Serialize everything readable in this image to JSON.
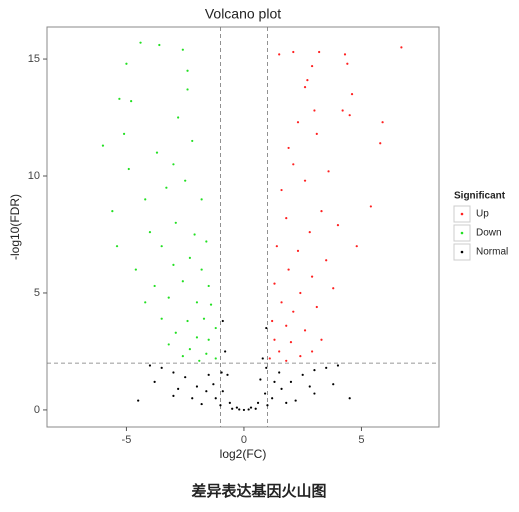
{
  "chart_data": {
    "type": "scatter",
    "title": "Volcano plot",
    "x_label": "log2(FC)",
    "y_label": "-log10(FDR)",
    "caption": "差异表达基因火山图",
    "xlim": [
      -8.38,
      8.3
    ],
    "ylim": [
      -0.73,
      16.37
    ],
    "xticks": [
      -5,
      0,
      5
    ],
    "yticks": [
      0,
      5,
      10,
      15
    ],
    "thresholds": {
      "x": [
        -1,
        1
      ],
      "y": [
        2
      ]
    },
    "legend": {
      "title": "Significant",
      "position": "right"
    },
    "series": [
      {
        "name": "Up",
        "color": "#ff2020",
        "x": [
          6.7,
          4.3,
          3.2,
          2.1,
          1.5,
          2.9,
          4.4,
          2.7,
          2.6,
          4.6,
          3,
          4.2,
          5.9,
          4.5,
          2.3,
          1.9,
          3.1,
          5.8,
          2.1,
          3.6,
          1.6,
          2.6,
          5.4,
          3.3,
          1.8,
          2.8,
          4,
          1.4,
          2.3,
          3.5,
          4.8,
          1.9,
          2.9,
          1.3,
          2.4,
          3.8,
          1.6,
          2.1,
          3.1,
          1.2,
          1.8,
          2.6,
          1.3,
          2,
          3.3,
          1.5,
          1.1,
          2.4,
          1.8,
          2.9
        ],
        "values": [
          15.5,
          15.2,
          15.3,
          15.3,
          15.2,
          14.7,
          14.8,
          14.1,
          13.8,
          13.5,
          12.8,
          12.8,
          12.3,
          12.6,
          12.3,
          11.2,
          11.8,
          11.4,
          10.5,
          10.2,
          9.4,
          9.8,
          8.7,
          8.5,
          8.2,
          7.6,
          7.9,
          7,
          6.8,
          6.4,
          7,
          6,
          5.7,
          5.4,
          5,
          5.2,
          4.6,
          4.2,
          4.4,
          3.8,
          3.6,
          3.4,
          3,
          2.9,
          3,
          2.5,
          2.2,
          2.3,
          2.1,
          2.5
        ]
      },
      {
        "name": "Down",
        "color": "#22e022",
        "x": [
          -4.4,
          -3.6,
          -2.6,
          -5,
          -2.4,
          -5.3,
          -4.8,
          -2.4,
          -2.8,
          -5.1,
          -6,
          -4.9,
          -3.7,
          -2.2,
          -3,
          -5.6,
          -4.2,
          -3.3,
          -2.5,
          -1.8,
          -4,
          -2.9,
          -2.1,
          -5.4,
          -3.5,
          -1.6,
          -4.6,
          -3,
          -2.3,
          -1.8,
          -3.8,
          -2.6,
          -1.5,
          -4.2,
          -3.2,
          -2,
          -1.4,
          -3.5,
          -2.4,
          -1.7,
          -1.2,
          -2.9,
          -2,
          -1.5,
          -3.2,
          -2.3,
          -1.6,
          -1.2,
          -2.6,
          -1.9
        ],
        "values": [
          15.7,
          15.6,
          15.4,
          14.8,
          14.5,
          13.3,
          13.2,
          13.7,
          12.5,
          11.8,
          11.3,
          10.3,
          11,
          11.5,
          10.5,
          8.5,
          9,
          9.5,
          9.8,
          9,
          7.6,
          8,
          7.5,
          7,
          7,
          7.2,
          6,
          6.2,
          6.5,
          6,
          5.3,
          5.5,
          5.3,
          4.6,
          4.8,
          4.6,
          4.5,
          3.9,
          3.8,
          3.9,
          3.5,
          3.3,
          3.1,
          3,
          2.8,
          2.6,
          2.4,
          2.2,
          2.3,
          2.1
        ]
      },
      {
        "name": "Normal",
        "color": "#000000",
        "x": [
          0,
          -0.3,
          0.3,
          -0.6,
          0.6,
          -0.9,
          0.9,
          -0.8,
          0.8,
          -0.9,
          0.95,
          -0.7,
          0.7,
          -1.2,
          1.2,
          -1.6,
          1.6,
          -2,
          2,
          -2.5,
          2.5,
          -3,
          3,
          -3.5,
          3.5,
          -4,
          4,
          -1.5,
          1.5,
          -2.2,
          2.2,
          -3,
          3,
          -4.5,
          4.5,
          -1,
          1,
          -0.5,
          0.5,
          -1.8,
          1.8,
          -2.8,
          2.8,
          -3.8,
          3.8,
          -1.3,
          1.3,
          -0.95,
          0.95,
          -0.2,
          0.2
        ],
        "values": [
          0,
          0.1,
          0.1,
          0.3,
          0.3,
          0.8,
          0.7,
          2.5,
          2.2,
          3.8,
          3.5,
          1.5,
          1.3,
          0.5,
          0.5,
          0.8,
          0.9,
          1,
          1.2,
          1.4,
          1.5,
          1.6,
          1.7,
          1.8,
          1.8,
          1.9,
          1.9,
          1.5,
          1.6,
          0.5,
          0.4,
          0.6,
          0.7,
          0.4,
          0.5,
          0.2,
          0.2,
          0.05,
          0.05,
          0.25,
          0.3,
          0.9,
          1,
          1.2,
          1.1,
          1.1,
          1.2,
          1.6,
          1.8,
          0.02,
          0.02
        ]
      }
    ]
  }
}
